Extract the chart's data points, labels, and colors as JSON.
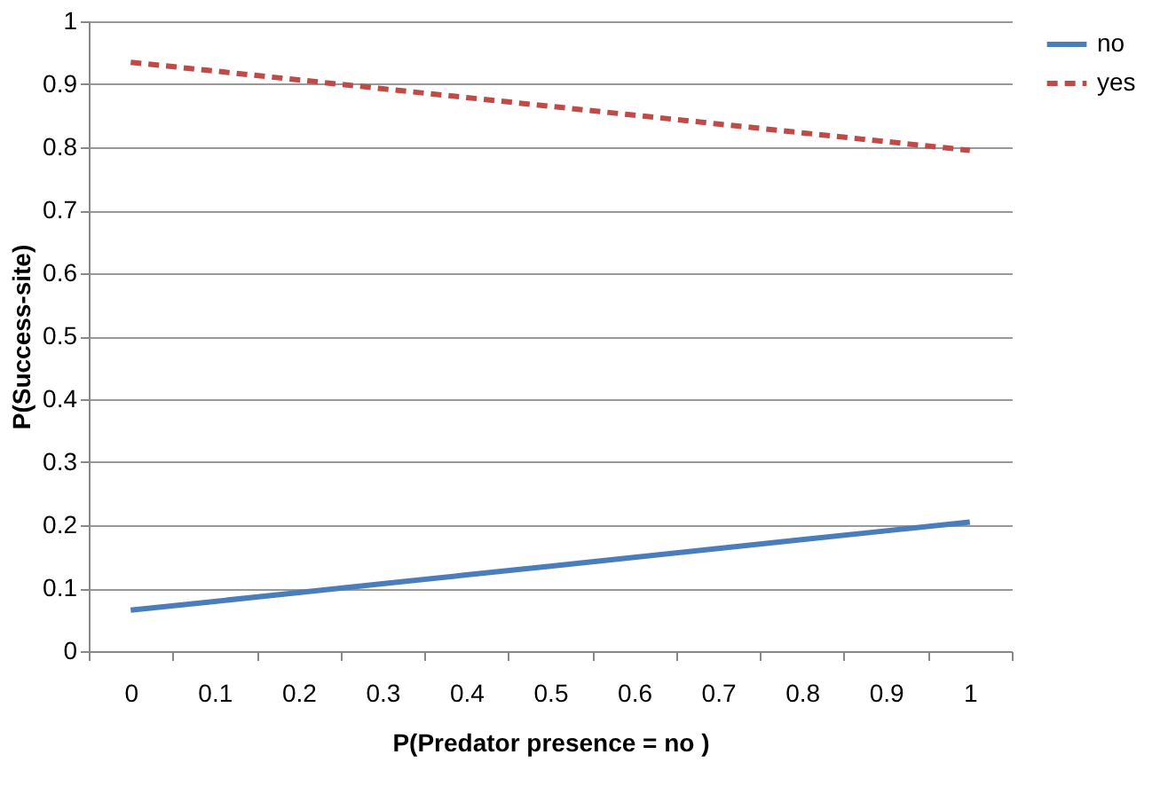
{
  "chart_data": {
    "type": "line",
    "xlabel": "P(Predator presence = no )",
    "ylabel": "P(Success-site)",
    "categories": [
      "0",
      "0.1",
      "0.2",
      "0.3",
      "0.4",
      "0.5",
      "0.6",
      "0.7",
      "0.8",
      "0.9",
      "1"
    ],
    "series": [
      {
        "name": "no",
        "color": "#4a7ebb",
        "line_style": "solid",
        "values": [
          0.065,
          0.079,
          0.093,
          0.107,
          0.121,
          0.135,
          0.149,
          0.163,
          0.177,
          0.191,
          0.205
        ]
      },
      {
        "name": "yes",
        "color": "#be4b48",
        "line_style": "dashed",
        "values": [
          0.935,
          0.921,
          0.907,
          0.893,
          0.879,
          0.865,
          0.851,
          0.837,
          0.823,
          0.809,
          0.795
        ]
      }
    ],
    "ylim": [
      0,
      1
    ],
    "yticks": [
      0,
      0.1,
      0.2,
      0.3,
      0.4,
      0.5,
      0.6,
      0.7,
      0.8,
      0.9,
      1
    ],
    "grid": "y",
    "legend": "right",
    "marker": "none"
  }
}
